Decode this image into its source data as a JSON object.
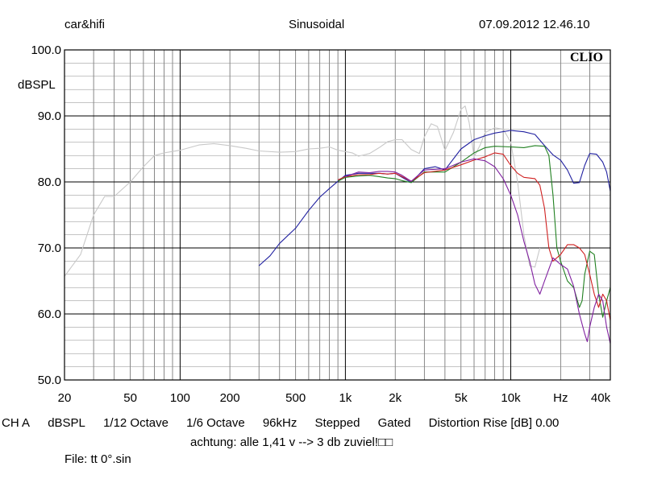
{
  "header": {
    "brand": "car&hifi",
    "mode": "Sinusoidal",
    "datetime": "07.09.2012 12.46.10",
    "logo": "CLIO"
  },
  "footer": {
    "settings": [
      "CH A",
      "dBSPL",
      "1/12 Octave",
      "1/6 Octave",
      "96kHz",
      "Stepped",
      "Gated",
      "Distortion Rise [dB] 0.00"
    ],
    "note": "achtung: alle 1,41 v --> 3 db zuviel!□□",
    "file": "File: tt 0°.sin"
  },
  "chart_data": {
    "type": "line",
    "title": "",
    "xlabel": "Hz",
    "ylabel": "dBSPL",
    "xscale": "log",
    "xlim": [
      20,
      40000
    ],
    "ylim": [
      50,
      100
    ],
    "grid": true,
    "x_tick_labels": [
      {
        "v": 20,
        "t": "20"
      },
      {
        "v": 50,
        "t": "50"
      },
      {
        "v": 100,
        "t": "100"
      },
      {
        "v": 200,
        "t": "200"
      },
      {
        "v": 500,
        "t": "500"
      },
      {
        "v": 1000,
        "t": "1k"
      },
      {
        "v": 2000,
        "t": "2k"
      },
      {
        "v": 5000,
        "t": "5k"
      },
      {
        "v": 10000,
        "t": "10k"
      },
      {
        "v": 20000,
        "t": "Hz"
      },
      {
        "v": 40000,
        "t": "40k"
      }
    ],
    "y_tick_labels": [
      {
        "v": 100,
        "t": "100.0"
      },
      {
        "v": 90,
        "t": "90.0"
      },
      {
        "v": 80,
        "t": "80.0"
      },
      {
        "v": 70,
        "t": "70.0"
      },
      {
        "v": 60,
        "t": "60.0"
      },
      {
        "v": 50,
        "t": "50.0"
      }
    ],
    "series": [
      {
        "color": "#c8c8c8",
        "points": [
          [
            20,
            65.7
          ],
          [
            25,
            69
          ],
          [
            30,
            75
          ],
          [
            35,
            77.8
          ],
          [
            40,
            77.8
          ],
          [
            50,
            80
          ],
          [
            60,
            82.3
          ],
          [
            70,
            84
          ],
          [
            80,
            84.4
          ],
          [
            100,
            84.8
          ],
          [
            130,
            85.6
          ],
          [
            160,
            85.8
          ],
          [
            200,
            85.5
          ],
          [
            250,
            85.1
          ],
          [
            300,
            84.7
          ],
          [
            400,
            84.5
          ],
          [
            500,
            84.6
          ],
          [
            600,
            85
          ],
          [
            700,
            85.1
          ],
          [
            800,
            85.3
          ],
          [
            900,
            84.8
          ],
          [
            1000,
            84.6
          ],
          [
            1100,
            84.4
          ],
          [
            1200,
            83.9
          ],
          [
            1400,
            84.3
          ],
          [
            1600,
            85.2
          ],
          [
            1800,
            86.1
          ],
          [
            2000,
            86.4
          ],
          [
            2200,
            86.4
          ],
          [
            2500,
            84.9
          ],
          [
            2800,
            84.3
          ],
          [
            3000,
            86.8
          ],
          [
            3300,
            88.8
          ],
          [
            3600,
            88.4
          ],
          [
            4000,
            84.8
          ],
          [
            4500,
            87.5
          ],
          [
            5000,
            91
          ],
          [
            5300,
            91.5
          ],
          [
            5600,
            89
          ],
          [
            6000,
            83.8
          ],
          [
            6500,
            85.5
          ],
          [
            7000,
            87.5
          ],
          [
            8000,
            88.2
          ],
          [
            9000,
            88
          ],
          [
            10000,
            86
          ],
          [
            11000,
            80
          ],
          [
            12000,
            72
          ],
          [
            13000,
            67.3
          ],
          [
            14000,
            67.1
          ],
          [
            15000,
            70
          ]
        ]
      },
      {
        "color": "#2020a0",
        "points": [
          [
            300,
            67.3
          ],
          [
            350,
            68.8
          ],
          [
            400,
            70.7
          ],
          [
            500,
            73
          ],
          [
            600,
            75.7
          ],
          [
            700,
            77.7
          ],
          [
            800,
            79
          ],
          [
            900,
            80.1
          ],
          [
            1000,
            81
          ],
          [
            1200,
            81.3
          ],
          [
            1400,
            81.3
          ],
          [
            1600,
            81.3
          ],
          [
            1800,
            81.2
          ],
          [
            2000,
            81.3
          ],
          [
            2200,
            80.7
          ],
          [
            2500,
            79.9
          ],
          [
            3000,
            82
          ],
          [
            3500,
            82.3
          ],
          [
            4000,
            81.8
          ],
          [
            5000,
            85
          ],
          [
            6000,
            86.4
          ],
          [
            7000,
            87
          ],
          [
            8000,
            87.4
          ],
          [
            10000,
            87.8
          ],
          [
            12000,
            87.6
          ],
          [
            14000,
            87.2
          ],
          [
            16000,
            85.5
          ],
          [
            18000,
            84.1
          ],
          [
            20000,
            83.3
          ],
          [
            22000,
            81.8
          ],
          [
            24000,
            79.8
          ],
          [
            26000,
            79.9
          ],
          [
            28000,
            82.5
          ],
          [
            30000,
            84.3
          ],
          [
            33000,
            84.2
          ],
          [
            36000,
            83
          ],
          [
            38000,
            81.5
          ],
          [
            40000,
            78.6
          ]
        ]
      },
      {
        "color": "#208020",
        "points": [
          [
            900,
            80.1
          ],
          [
            1000,
            80.7
          ],
          [
            1200,
            80.9
          ],
          [
            1400,
            81
          ],
          [
            1600,
            80.8
          ],
          [
            1800,
            80.6
          ],
          [
            2000,
            80.5
          ],
          [
            2200,
            80.2
          ],
          [
            2500,
            79.9
          ],
          [
            3000,
            81.5
          ],
          [
            4000,
            81.5
          ],
          [
            5000,
            83
          ],
          [
            6000,
            84.4
          ],
          [
            7000,
            85.2
          ],
          [
            8000,
            85.4
          ],
          [
            10000,
            85.3
          ],
          [
            12000,
            85.2
          ],
          [
            14000,
            85.5
          ],
          [
            16000,
            85.4
          ],
          [
            17000,
            84
          ],
          [
            18000,
            78
          ],
          [
            19000,
            70
          ],
          [
            20000,
            68
          ],
          [
            22000,
            65
          ],
          [
            24000,
            64
          ],
          [
            26000,
            61
          ],
          [
            27000,
            62
          ],
          [
            28000,
            66
          ],
          [
            30000,
            69.5
          ],
          [
            32000,
            69
          ],
          [
            34000,
            63
          ],
          [
            36000,
            59.5
          ],
          [
            38000,
            62
          ],
          [
            40000,
            64
          ]
        ]
      },
      {
        "color": "#d02020",
        "points": [
          [
            900,
            80.3
          ],
          [
            1000,
            80.8
          ],
          [
            1200,
            81.1
          ],
          [
            1400,
            81.1
          ],
          [
            1600,
            81.3
          ],
          [
            1800,
            81.2
          ],
          [
            2000,
            81.3
          ],
          [
            2200,
            80.8
          ],
          [
            2500,
            80.1
          ],
          [
            3000,
            81.4
          ],
          [
            4000,
            81.8
          ],
          [
            5000,
            82.6
          ],
          [
            6000,
            83.3
          ],
          [
            7000,
            83.8
          ],
          [
            8000,
            84.4
          ],
          [
            9000,
            84.2
          ],
          [
            10000,
            82.5
          ],
          [
            11000,
            81.3
          ],
          [
            12000,
            80.7
          ],
          [
            14000,
            80.5
          ],
          [
            15000,
            79.5
          ],
          [
            16000,
            76
          ],
          [
            17000,
            70
          ],
          [
            18000,
            68
          ],
          [
            20000,
            69
          ],
          [
            22000,
            70.5
          ],
          [
            24000,
            70.5
          ],
          [
            26000,
            70
          ],
          [
            28000,
            69
          ],
          [
            30000,
            66
          ],
          [
            32000,
            63
          ],
          [
            34000,
            61
          ],
          [
            36000,
            63
          ],
          [
            38000,
            62
          ],
          [
            40000,
            59
          ]
        ]
      },
      {
        "color": "#8020a0",
        "points": [
          [
            1000,
            80.8
          ],
          [
            1200,
            81.5
          ],
          [
            1400,
            81.4
          ],
          [
            1600,
            81.6
          ],
          [
            1800,
            81.6
          ],
          [
            2000,
            81.5
          ],
          [
            2200,
            81
          ],
          [
            2500,
            80.1
          ],
          [
            3000,
            81.8
          ],
          [
            4000,
            82
          ],
          [
            5000,
            83
          ],
          [
            6000,
            83.5
          ],
          [
            7000,
            83.2
          ],
          [
            8000,
            82.3
          ],
          [
            9000,
            80.5
          ],
          [
            10000,
            78
          ],
          [
            11000,
            75
          ],
          [
            12000,
            71
          ],
          [
            13000,
            68
          ],
          [
            14000,
            64.5
          ],
          [
            15000,
            63
          ],
          [
            16000,
            65
          ],
          [
            17000,
            66.8
          ],
          [
            18000,
            68.5
          ],
          [
            20000,
            67.5
          ],
          [
            22000,
            66.8
          ],
          [
            24000,
            64.2
          ],
          [
            26000,
            60
          ],
          [
            28000,
            57
          ],
          [
            29000,
            55.8
          ],
          [
            30000,
            58
          ],
          [
            32000,
            61
          ],
          [
            34000,
            63
          ],
          [
            36000,
            62
          ],
          [
            38000,
            58
          ],
          [
            40000,
            55.5
          ]
        ]
      }
    ]
  }
}
